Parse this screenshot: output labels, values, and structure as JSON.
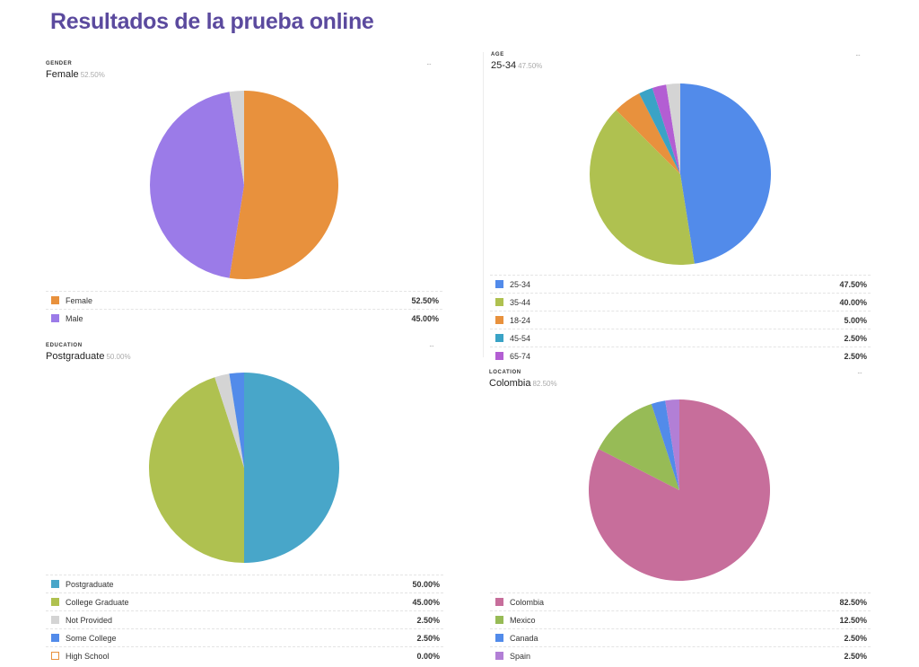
{
  "title": "Resultados de la prueba online",
  "charts": [
    {
      "key": "gender",
      "category": "GENDER",
      "top_label": "Female",
      "top_value": "52.50%",
      "chart_data": {
        "type": "pie",
        "slices": [
          {
            "label": "Female",
            "value": 52.5,
            "value_label": "52.50%",
            "color": "#e8913d"
          },
          {
            "label": "Male",
            "value": 45.0,
            "value_label": "45.00%",
            "color": "#9b7be8"
          },
          {
            "label": "",
            "value": 2.5,
            "color": "#d4d4d4"
          }
        ]
      },
      "legend": [
        {
          "label": "Female",
          "value": "52.50%",
          "color": "#e8913d"
        },
        {
          "label": "Male",
          "value": "45.00%",
          "color": "#9b7be8"
        }
      ]
    },
    {
      "key": "age",
      "category": "AGE",
      "top_label": "25-34",
      "top_value": "47.50%",
      "chart_data": {
        "type": "pie",
        "slices": [
          {
            "label": "25-34",
            "value": 47.5,
            "value_label": "47.50%",
            "color": "#528bea"
          },
          {
            "label": "35-44",
            "value": 40.0,
            "value_label": "40.00%",
            "color": "#afc150"
          },
          {
            "label": "18-24",
            "value": 5.0,
            "value_label": "5.00%",
            "color": "#e8913d"
          },
          {
            "label": "45-54",
            "value": 2.5,
            "value_label": "2.50%",
            "color": "#3aa3c6"
          },
          {
            "label": "65-74",
            "value": 2.5,
            "value_label": "2.50%",
            "color": "#b35ed3"
          },
          {
            "label": "",
            "value": 2.5,
            "color": "#d4d4d4"
          }
        ]
      },
      "legend": [
        {
          "label": "25-34",
          "value": "47.50%",
          "color": "#528bea"
        },
        {
          "label": "35-44",
          "value": "40.00%",
          "color": "#afc150"
        },
        {
          "label": "18-24",
          "value": "5.00%",
          "color": "#e8913d"
        },
        {
          "label": "45-54",
          "value": "2.50%",
          "color": "#3aa3c6"
        },
        {
          "label": "65-74",
          "value": "2.50%",
          "color": "#b35ed3"
        }
      ]
    },
    {
      "key": "education",
      "category": "EDUCATION",
      "top_label": "Postgraduate",
      "top_value": "50.00%",
      "chart_data": {
        "type": "pie",
        "slices": [
          {
            "label": "Postgraduate",
            "value": 50.0,
            "value_label": "50.00%",
            "color": "#48a6c9"
          },
          {
            "label": "College Graduate",
            "value": 45.0,
            "value_label": "45.00%",
            "color": "#afc150"
          },
          {
            "label": "Not Provided",
            "value": 2.5,
            "value_label": "2.50%",
            "color": "#d4d4d4"
          },
          {
            "label": "Some College",
            "value": 2.5,
            "value_label": "2.50%",
            "color": "#528bea"
          },
          {
            "label": "High School",
            "value": 0.0,
            "value_label": "0.00%",
            "color": "#e8913d"
          }
        ]
      },
      "legend": [
        {
          "label": "Postgraduate",
          "value": "50.00%",
          "color": "#48a6c9"
        },
        {
          "label": "College Graduate",
          "value": "45.00%",
          "color": "#afc150"
        },
        {
          "label": "Not Provided",
          "value": "2.50%",
          "color": "#d4d4d4"
        },
        {
          "label": "Some College",
          "value": "2.50%",
          "color": "#528bea"
        },
        {
          "label": "High School",
          "value": "0.00%",
          "color": "#e8913d",
          "outline": true
        }
      ]
    },
    {
      "key": "location",
      "category": "LOCATION",
      "top_label": "Colombia",
      "top_value": "82.50%",
      "chart_data": {
        "type": "pie",
        "slices": [
          {
            "label": "Colombia",
            "value": 82.5,
            "value_label": "82.50%",
            "color": "#c76e9b"
          },
          {
            "label": "Mexico",
            "value": 12.5,
            "value_label": "12.50%",
            "color": "#97bb56"
          },
          {
            "label": "Canada",
            "value": 2.5,
            "value_label": "2.50%",
            "color": "#528bea"
          },
          {
            "label": "Spain",
            "value": 2.5,
            "value_label": "2.50%",
            "color": "#b27fd6"
          }
        ]
      },
      "legend": [
        {
          "label": "Colombia",
          "value": "82.50%",
          "color": "#c76e9b"
        },
        {
          "label": "Mexico",
          "value": "12.50%",
          "color": "#97bb56"
        },
        {
          "label": "Canada",
          "value": "2.50%",
          "color": "#528bea"
        },
        {
          "label": "Spain",
          "value": "2.50%",
          "color": "#b27fd6"
        }
      ]
    }
  ]
}
